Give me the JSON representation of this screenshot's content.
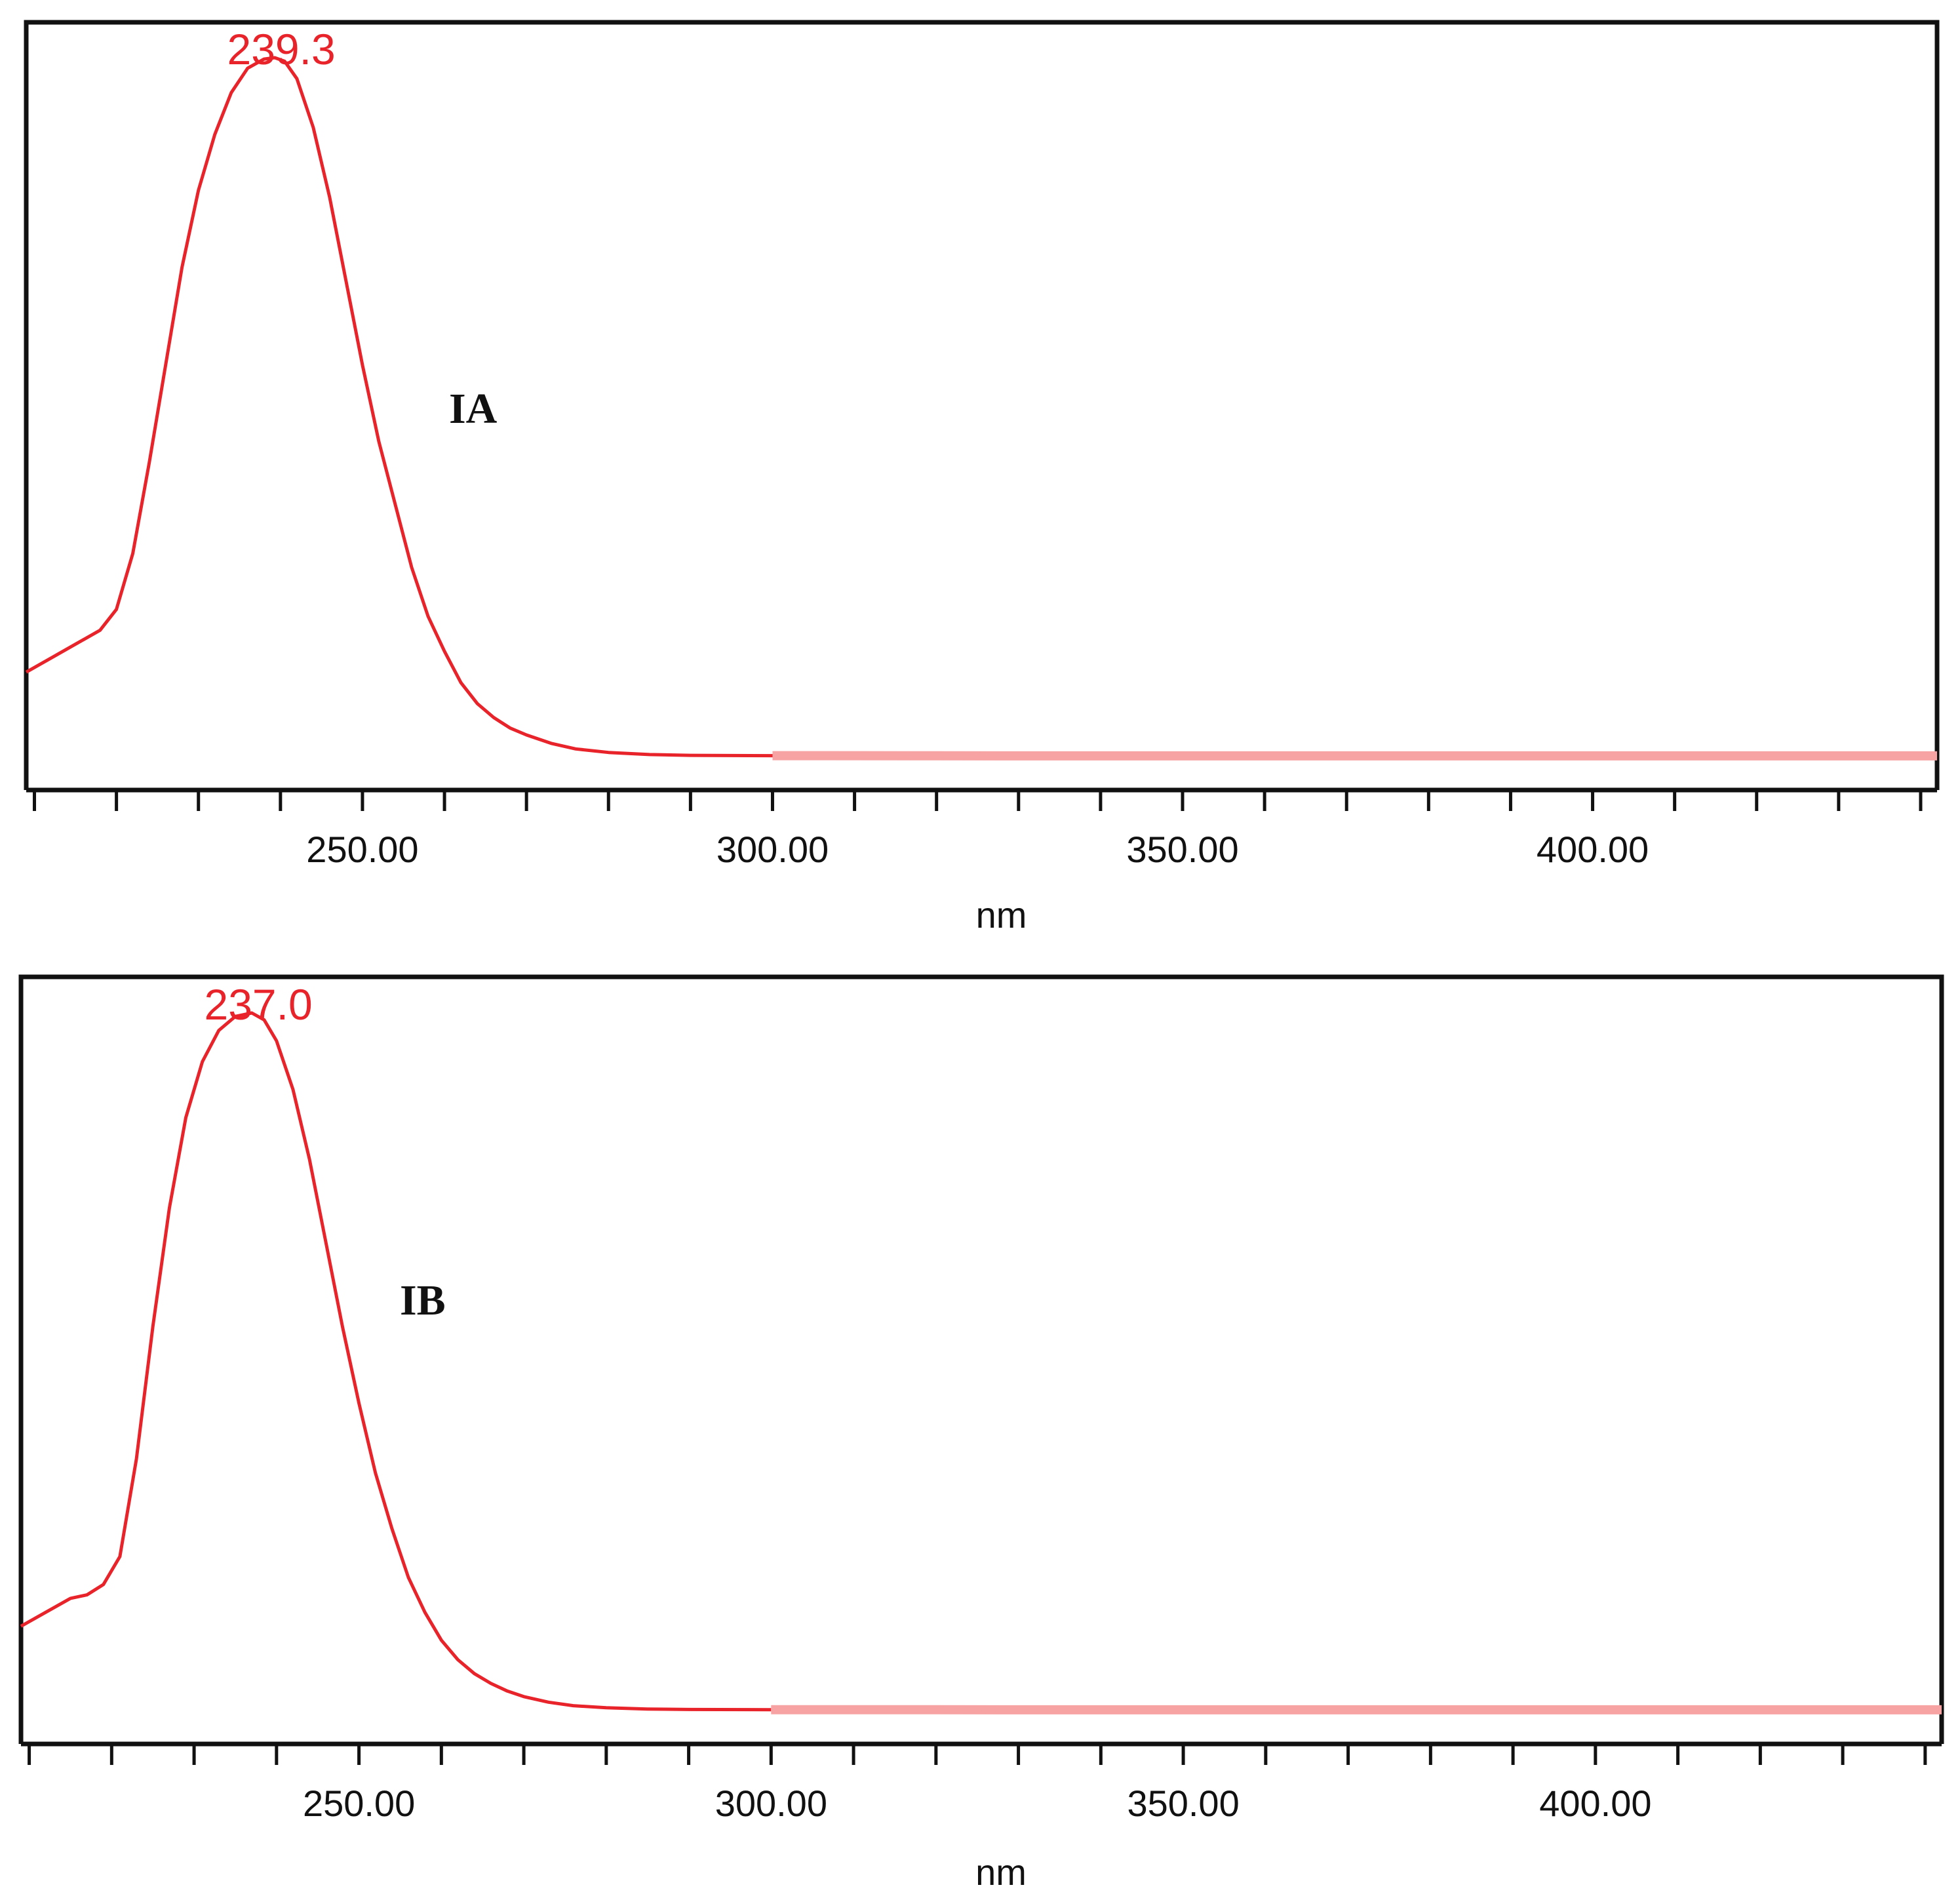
{
  "chart_data": [
    {
      "type": "line",
      "label": "IA",
      "xlabel": "nm",
      "ylabel": "",
      "xlim": [
        209,
        442
      ],
      "ylim": [
        -0.05,
        1.0
      ],
      "x_ticks": [
        "250.00",
        "300.00",
        "350.00",
        "400.00"
      ],
      "x_tick_values": [
        250,
        300,
        350,
        400
      ],
      "minor_tick_step": 10,
      "peak": {
        "label": "239.3",
        "x": 239.3,
        "y": 1.0
      },
      "series": [
        {
          "color": "#e8232a",
          "x": [
            209,
            212,
            215,
            218,
            220,
            222,
            224,
            226,
            228,
            230,
            232,
            234,
            236,
            238,
            239.3,
            240.5,
            242,
            244,
            246,
            248,
            250,
            252,
            254,
            256,
            258,
            260,
            262,
            264,
            266,
            268,
            270,
            273,
            276,
            280,
            285,
            290,
            300,
            320,
            350,
            380,
            410,
            442
          ],
          "y": [
            0.12,
            0.14,
            0.16,
            0.18,
            0.21,
            0.29,
            0.42,
            0.56,
            0.7,
            0.81,
            0.89,
            0.95,
            0.985,
            0.998,
            1.0,
            0.995,
            0.97,
            0.9,
            0.8,
            0.68,
            0.56,
            0.45,
            0.36,
            0.27,
            0.2,
            0.15,
            0.105,
            0.075,
            0.055,
            0.04,
            0.03,
            0.018,
            0.01,
            0.005,
            0.002,
            0.0008,
            0.0004,
            0.0002,
            0.0001,
            0.0001,
            0.0001,
            0.0001
          ]
        }
      ]
    },
    {
      "type": "line",
      "label": "IB",
      "xlabel": "nm",
      "ylabel": "",
      "xlim": [
        209,
        442
      ],
      "ylim": [
        -0.05,
        1.0
      ],
      "x_ticks": [
        "250.00",
        "300.00",
        "350.00",
        "400.00"
      ],
      "x_tick_values": [
        250,
        300,
        350,
        400
      ],
      "minor_tick_step": 10,
      "peak": {
        "label": "237.0",
        "x": 237.0,
        "y": 1.0
      },
      "series": [
        {
          "color": "#e8232a",
          "x": [
            209,
            212,
            215,
            217,
            219,
            221,
            223,
            225,
            227,
            229,
            231,
            233,
            235,
            237.0,
            238.5,
            240,
            242,
            244,
            246,
            248,
            250,
            252,
            254,
            256,
            258,
            260,
            262,
            264,
            266,
            268,
            270,
            273,
            276,
            280,
            285,
            290,
            300,
            320,
            350,
            380,
            410,
            442
          ],
          "y": [
            0.12,
            0.14,
            0.16,
            0.165,
            0.18,
            0.22,
            0.36,
            0.55,
            0.72,
            0.85,
            0.93,
            0.975,
            0.995,
            1.0,
            0.99,
            0.96,
            0.89,
            0.79,
            0.67,
            0.55,
            0.44,
            0.34,
            0.26,
            0.19,
            0.14,
            0.1,
            0.072,
            0.052,
            0.038,
            0.027,
            0.019,
            0.011,
            0.006,
            0.003,
            0.0012,
            0.0006,
            0.0003,
            0.0002,
            0.0001,
            0.0001,
            0.0001,
            0.0001
          ]
        }
      ]
    }
  ]
}
